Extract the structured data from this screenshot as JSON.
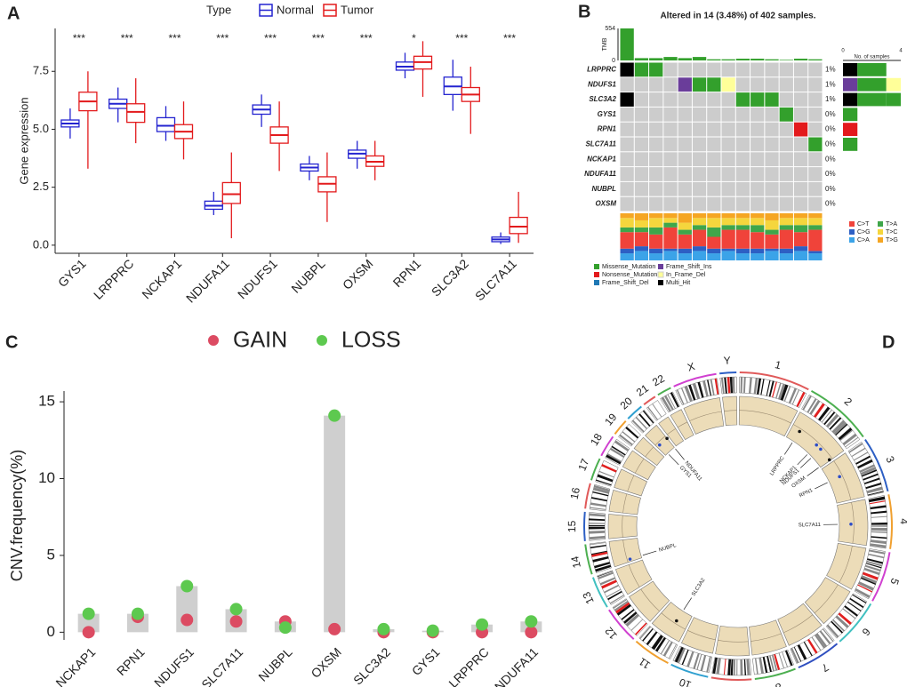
{
  "chart_data": [
    {
      "panel": "A",
      "type": "box",
      "legend_title": "Type",
      "ylabel": "Gene expression",
      "categories": [
        "GYS1",
        "LRPPRC",
        "NCKAP1",
        "NDUFA11",
        "NDUFS1",
        "NUBPL",
        "OXSM",
        "RPN1",
        "SLC3A2",
        "SLC7A11"
      ],
      "significance": [
        "***",
        "***",
        "***",
        "***",
        "***",
        "***",
        "***",
        "*",
        "***",
        "***"
      ],
      "series": [
        {
          "name": "Normal",
          "color": "#2424d0",
          "boxes": [
            {
              "min": 4.6,
              "q1": 5.1,
              "median": 5.25,
              "q3": 5.4,
              "max": 5.9
            },
            {
              "min": 5.3,
              "q1": 5.9,
              "median": 6.1,
              "q3": 6.3,
              "max": 6.8
            },
            {
              "min": 4.5,
              "q1": 4.9,
              "median": 5.15,
              "q3": 5.5,
              "max": 6.0
            },
            {
              "min": 1.3,
              "q1": 1.55,
              "median": 1.7,
              "q3": 1.9,
              "max": 2.3
            },
            {
              "min": 5.1,
              "q1": 5.65,
              "median": 5.85,
              "q3": 6.05,
              "max": 6.5
            },
            {
              "min": 2.8,
              "q1": 3.2,
              "median": 3.35,
              "q3": 3.5,
              "max": 3.85
            },
            {
              "min": 3.3,
              "q1": 3.75,
              "median": 3.95,
              "q3": 4.1,
              "max": 4.5
            },
            {
              "min": 7.2,
              "q1": 7.55,
              "median": 7.7,
              "q3": 7.9,
              "max": 8.3
            },
            {
              "min": 5.8,
              "q1": 6.5,
              "median": 6.85,
              "q3": 7.25,
              "max": 8.0
            },
            {
              "min": 0.05,
              "q1": 0.15,
              "median": 0.25,
              "q3": 0.35,
              "max": 0.55
            }
          ]
        },
        {
          "name": "Tumor",
          "color": "#e31a1c",
          "boxes": [
            {
              "min": 3.3,
              "q1": 5.8,
              "median": 6.2,
              "q3": 6.6,
              "max": 7.5
            },
            {
              "min": 4.4,
              "q1": 5.3,
              "median": 5.75,
              "q3": 6.1,
              "max": 7.2
            },
            {
              "min": 3.7,
              "q1": 4.6,
              "median": 4.9,
              "q3": 5.2,
              "max": 6.2
            },
            {
              "min": 0.3,
              "q1": 1.8,
              "median": 2.2,
              "q3": 2.7,
              "max": 4.0
            },
            {
              "min": 3.2,
              "q1": 4.4,
              "median": 4.75,
              "q3": 5.1,
              "max": 6.2
            },
            {
              "min": 1.0,
              "q1": 2.3,
              "median": 2.65,
              "q3": 2.95,
              "max": 4.0
            },
            {
              "min": 2.8,
              "q1": 3.4,
              "median": 3.6,
              "q3": 3.85,
              "max": 4.5
            },
            {
              "min": 6.4,
              "q1": 7.6,
              "median": 7.9,
              "q3": 8.15,
              "max": 8.8
            },
            {
              "min": 4.8,
              "q1": 6.2,
              "median": 6.5,
              "q3": 6.8,
              "max": 7.7
            },
            {
              "min": 0.1,
              "q1": 0.5,
              "median": 0.8,
              "q3": 1.2,
              "max": 2.3
            }
          ]
        }
      ],
      "ylim": [
        -0.35,
        9.35
      ],
      "yticks": [
        {
          "value": 0,
          "label": "0.0"
        },
        2.5,
        {
          "value": 5,
          "label": "5.0"
        },
        7.5
      ]
    },
    {
      "panel": "B",
      "type": "oncoplot",
      "title": "Altered in 14 (3.48%) of 402 samples.",
      "genes": [
        "LRPPRC",
        "NDUFS1",
        "SLC3A2",
        "GYS1",
        "RPN1",
        "SLC7A11",
        "NCKAP1",
        "NDUFA11",
        "NUBPL",
        "OXSM"
      ],
      "percents": [
        "1%",
        "1%",
        "1%",
        "0%",
        "0%",
        "0%",
        "0%",
        "0%",
        "0%",
        "0%"
      ],
      "tmb_label": "TMB",
      "tmb_ylim": [
        0,
        554
      ],
      "tmb_yticks": [
        0,
        554
      ],
      "tmb_color": "#33a02c",
      "tmb": [
        554,
        40,
        40,
        60,
        40,
        60,
        20,
        20,
        30,
        30,
        20,
        10,
        30,
        20
      ],
      "samples_label": "No. of samples",
      "samples_xlim": [
        0,
        4
      ],
      "samples_xticks": [
        0,
        4
      ],
      "classes": [
        {
          "name": "Missense_Mutation",
          "color": "#33a02c"
        },
        {
          "name": "Nonsense_Mutation",
          "color": "#e31a1c"
        },
        {
          "name": "Frame_Shift_Del",
          "color": "#1f78b4"
        },
        {
          "name": "Frame_Shift_Ins",
          "color": "#6a3d9a"
        },
        {
          "name": "In_Frame_Del",
          "color": "#ffff99"
        },
        {
          "name": "Multi_Hit",
          "color": "#000000"
        }
      ],
      "matrix": [
        [
          "Multi_Hit",
          "Missense_Mutation",
          "Missense_Mutation",
          null,
          null,
          null,
          null,
          null,
          null,
          null,
          null,
          null,
          null,
          null
        ],
        [
          null,
          null,
          null,
          null,
          "Frame_Shift_Ins",
          "Missense_Mutation",
          "Missense_Mutation",
          "In_Frame_Del",
          null,
          null,
          null,
          null,
          null,
          null
        ],
        [
          "Multi_Hit",
          null,
          null,
          null,
          null,
          null,
          null,
          null,
          "Missense_Mutation",
          "Missense_Mutation",
          "Missense_Mutation",
          null,
          null,
          null
        ],
        [
          null,
          null,
          null,
          null,
          null,
          null,
          null,
          null,
          null,
          null,
          null,
          "Missense_Mutation",
          null,
          null
        ],
        [
          null,
          null,
          null,
          null,
          null,
          null,
          null,
          null,
          null,
          null,
          null,
          null,
          "Nonsense_Mutation",
          null
        ],
        [
          null,
          null,
          null,
          null,
          null,
          null,
          null,
          null,
          null,
          null,
          null,
          null,
          null,
          "Missense_Mutation"
        ],
        [
          null,
          null,
          null,
          null,
          null,
          null,
          null,
          null,
          null,
          null,
          null,
          null,
          null,
          null
        ],
        [
          null,
          null,
          null,
          null,
          null,
          null,
          null,
          null,
          null,
          null,
          null,
          null,
          null,
          null
        ],
        [
          null,
          null,
          null,
          null,
          null,
          null,
          null,
          null,
          null,
          null,
          null,
          null,
          null,
          null
        ],
        [
          null,
          null,
          null,
          null,
          null,
          null,
          null,
          null,
          null,
          null,
          null,
          null,
          null,
          null
        ]
      ],
      "titv": [
        {
          "name": "C>A",
          "color": "#3ba3e8",
          "values": [
            15,
            20,
            15,
            20,
            15,
            20,
            15,
            20,
            15,
            15,
            20,
            15,
            20,
            15
          ]
        },
        {
          "name": "C>G",
          "color": "#2d5fc4",
          "values": [
            10,
            10,
            10,
            5,
            10,
            10,
            10,
            5,
            10,
            10,
            5,
            10,
            10,
            5
          ]
        },
        {
          "name": "C>T",
          "color": "#f0433a",
          "values": [
            35,
            30,
            30,
            45,
            30,
            35,
            25,
            40,
            40,
            35,
            30,
            40,
            30,
            45
          ]
        },
        {
          "name": "T>A",
          "color": "#3fa64a",
          "values": [
            10,
            10,
            15,
            10,
            10,
            10,
            20,
            10,
            10,
            15,
            10,
            10,
            15,
            10
          ]
        },
        {
          "name": "T>C",
          "color": "#f5d63d",
          "values": [
            20,
            15,
            20,
            10,
            15,
            15,
            20,
            15,
            15,
            15,
            20,
            15,
            15,
            15
          ]
        },
        {
          "name": "T>G",
          "color": "#f5a623",
          "values": [
            10,
            15,
            10,
            10,
            20,
            10,
            10,
            10,
            10,
            10,
            15,
            10,
            10,
            10
          ]
        }
      ]
    },
    {
      "panel": "C",
      "type": "cnv",
      "ylabel": "CNV.frequency(%)",
      "categories": [
        "NCKAP1",
        "RPN1",
        "NDUFS1",
        "SLC7A11",
        "NUBPL",
        "OXSM",
        "SLC3A2",
        "GYS1",
        "LRPPRC",
        "NDUFA11"
      ],
      "series": [
        {
          "name": "GAIN",
          "color": "#dc4b62",
          "values": [
            0.0,
            1.0,
            0.8,
            0.7,
            0.7,
            0.2,
            0.0,
            0.0,
            0.0,
            0.0
          ]
        },
        {
          "name": "LOSS",
          "color": "#5dc94f",
          "values": [
            1.2,
            1.2,
            3.0,
            1.5,
            0.3,
            14.1,
            0.2,
            0.1,
            0.5,
            0.7
          ]
        }
      ],
      "bar_color": "#cfcfcf",
      "ylim": [
        -0.5,
        15.7
      ],
      "yticks": [
        0,
        5,
        10,
        15
      ]
    },
    {
      "panel": "D",
      "type": "circos",
      "chromosomes": [
        "1",
        "2",
        "3",
        "4",
        "5",
        "6",
        "7",
        "8",
        "9",
        "10",
        "11",
        "12",
        "13",
        "14",
        "15",
        "16",
        "17",
        "18",
        "19",
        "20",
        "21",
        "22",
        "X",
        "Y"
      ],
      "genes": [
        "LRPPRC",
        "NCKAP1",
        "NDUFS1",
        "OXSM",
        "RPN1",
        "SLC7A11",
        "SLC3A2",
        "NUBPL",
        "GYS1",
        "NDUFA11"
      ]
    }
  ]
}
